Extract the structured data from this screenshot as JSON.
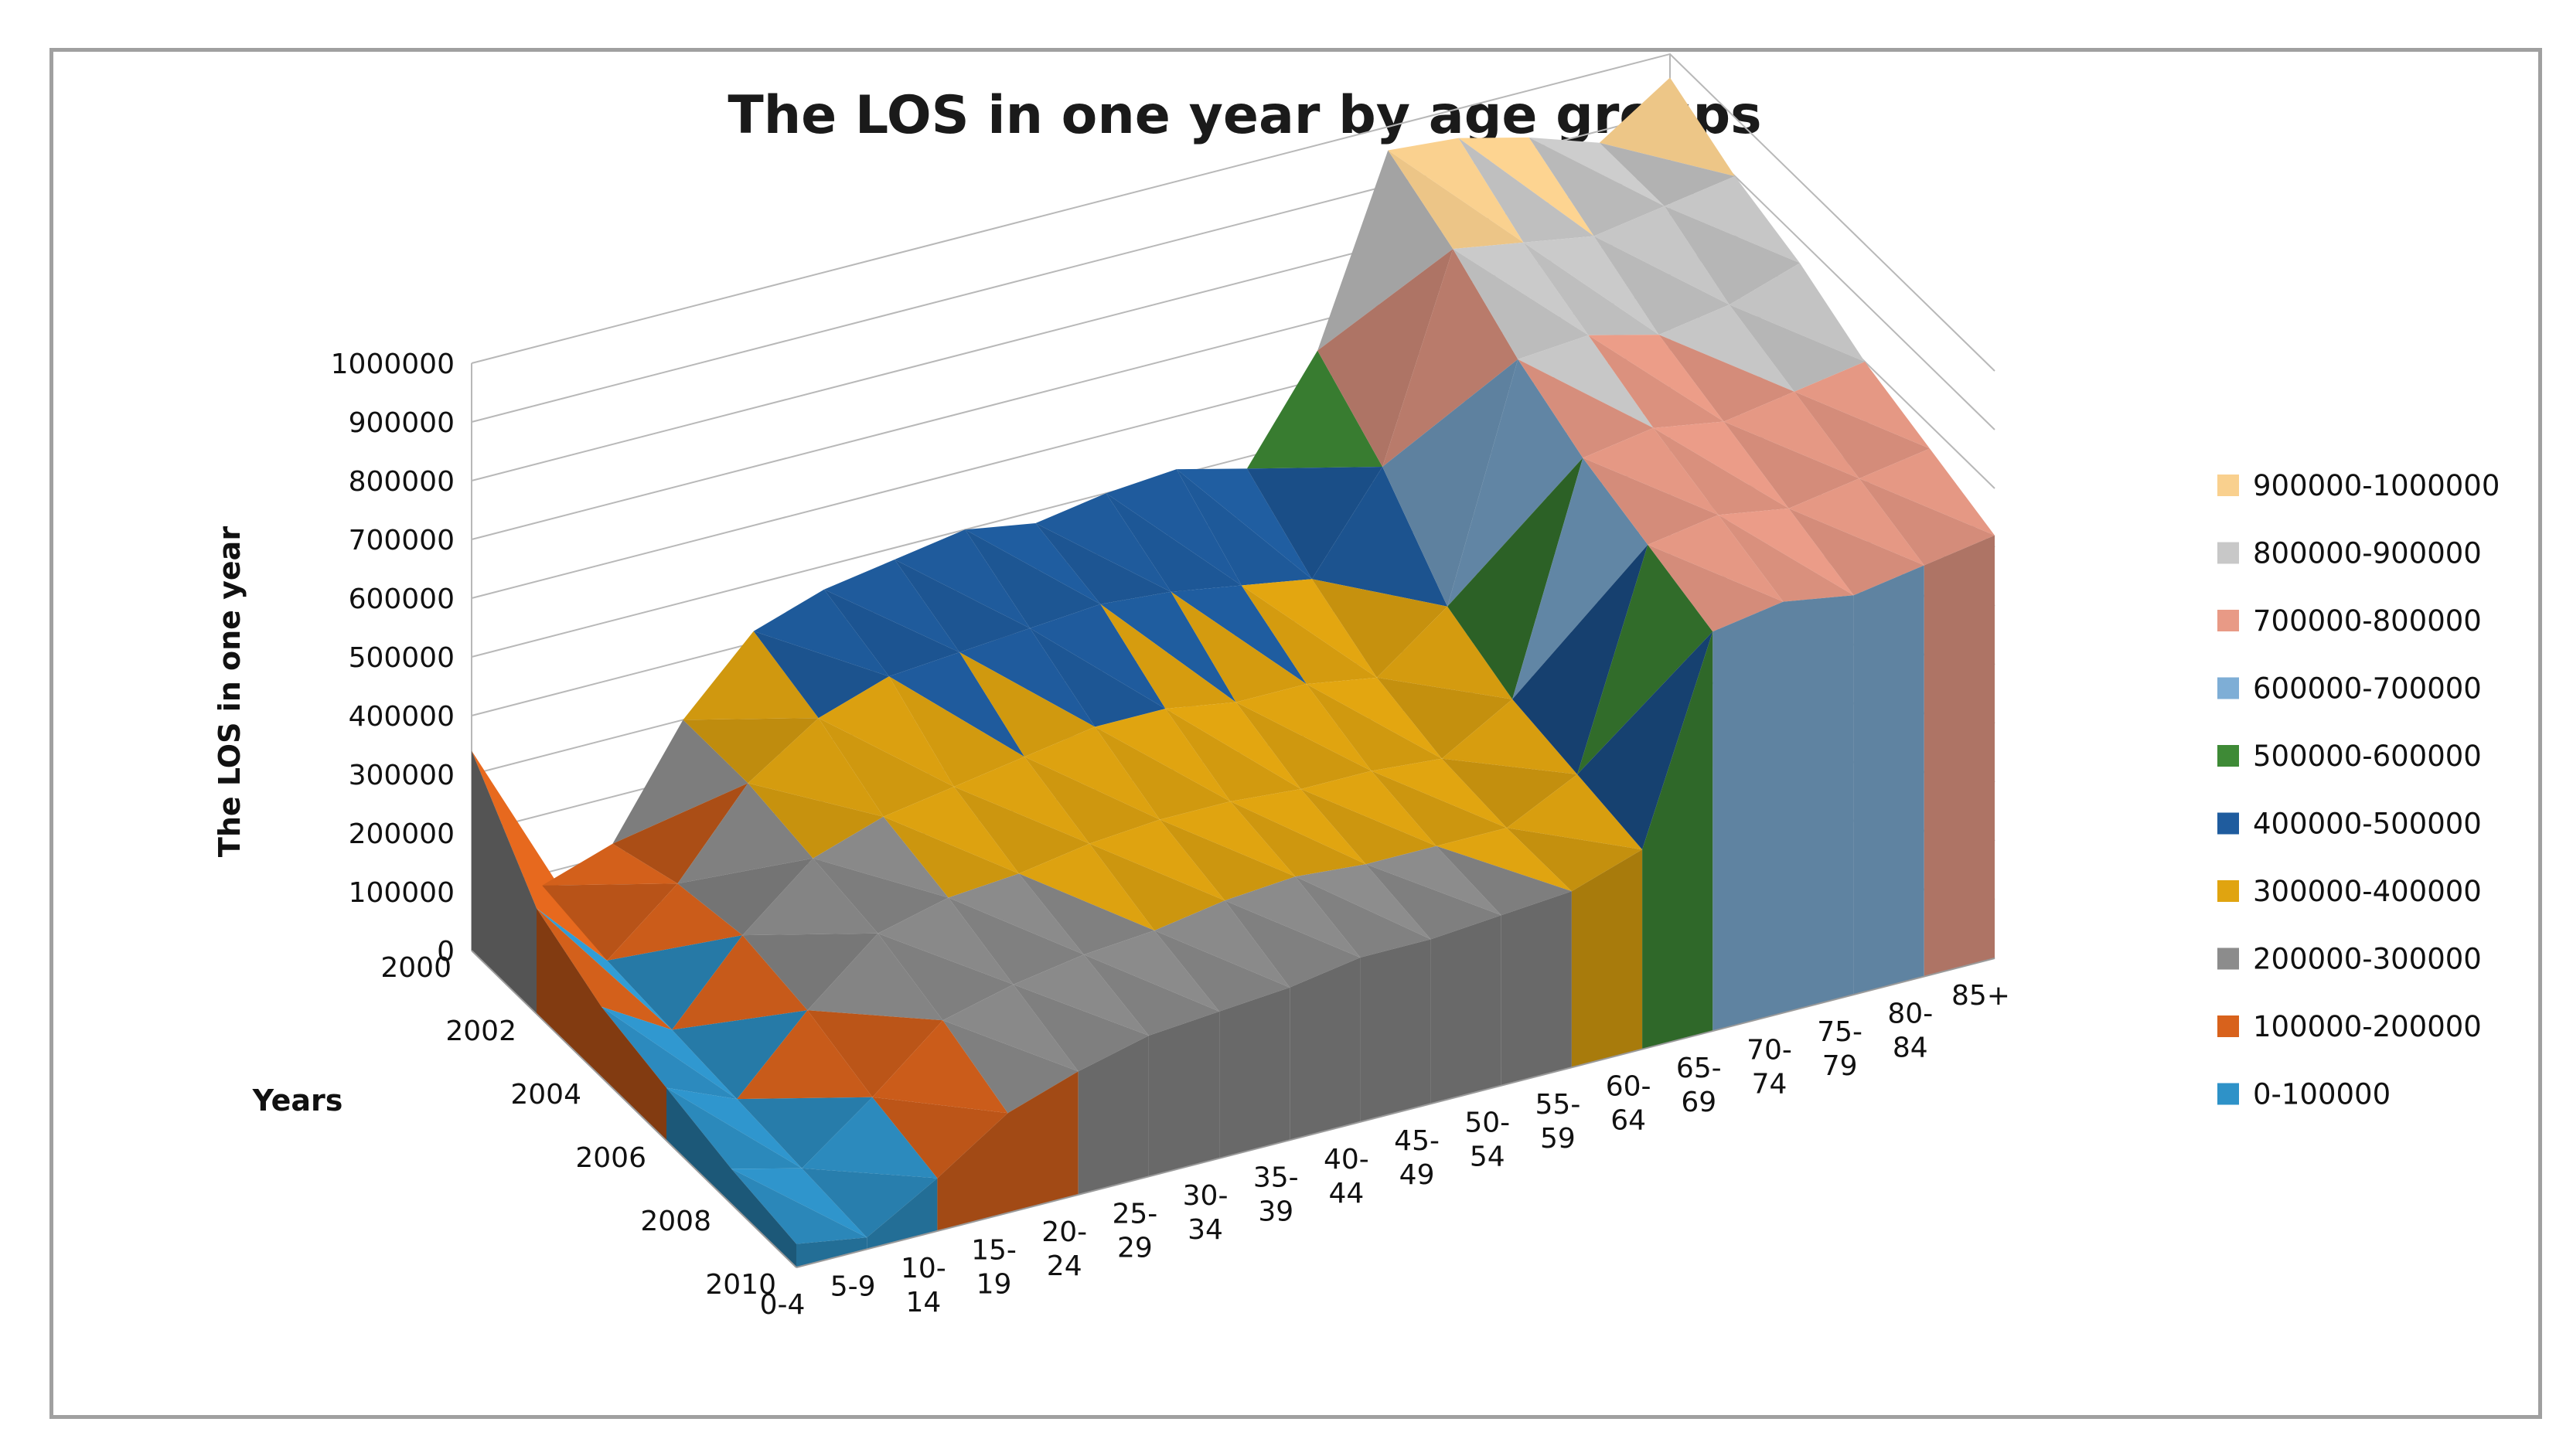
{
  "chart_data": {
    "type": "surface",
    "title": "The LOS in one year by age groups",
    "zlabel": "The LOS in one year",
    "ylabel": "Years",
    "xlabel": "",
    "zlim": [
      0,
      1000000
    ],
    "z_ticks": [
      "0",
      "100000",
      "200000",
      "300000",
      "400000",
      "500000",
      "600000",
      "700000",
      "800000",
      "900000",
      "1000000"
    ],
    "years": [
      "2000",
      "2002",
      "2004",
      "2006",
      "2008",
      "2010"
    ],
    "age_groups": [
      "0-4",
      "5-9",
      "10-14",
      "15-19",
      "20-24",
      "25-29",
      "30-34",
      "35-39",
      "40-44",
      "45-49",
      "50-54",
      "55-59",
      "60-64",
      "65-69",
      "70-74",
      "75-79",
      "80-84",
      "85+"
    ],
    "age_tick_lines": [
      [
        "0-4"
      ],
      [
        "5-9"
      ],
      [
        "10-",
        "14"
      ],
      [
        "15-",
        "19"
      ],
      [
        "20-",
        "24"
      ],
      [
        "25-",
        "29"
      ],
      [
        "30-",
        "34"
      ],
      [
        "35-",
        "39"
      ],
      [
        "40-",
        "44"
      ],
      [
        "45-",
        "49"
      ],
      [
        "50-",
        "54"
      ],
      [
        "55-",
        "59"
      ],
      [
        "60-",
        "64"
      ],
      [
        "65-",
        "69"
      ],
      [
        "70-",
        "74"
      ],
      [
        "75-",
        "79"
      ],
      [
        "80-",
        "84"
      ],
      [
        "85+"
      ]
    ],
    "series": [
      {
        "name": "2000",
        "values": [
          340000,
          80000,
          120000,
          300000,
          420000,
          460000,
          480000,
          500000,
          480000,
          500000,
          510000,
          480000,
          650000,
          960000,
          950000,
          920000,
          880000,
          960000
        ]
      },
      {
        "name": "2002",
        "values": [
          180000,
          60000,
          160000,
          300000,
          380000,
          420000,
          430000,
          440000,
          450000,
          440000,
          420000,
          400000,
          560000,
          900000,
          880000,
          860000,
          880000,
          900000
        ]
      },
      {
        "name": "2004",
        "values": [
          120000,
          50000,
          180000,
          280000,
          320000,
          340000,
          360000,
          380000,
          380000,
          360000,
          360000,
          340000,
          430000,
          820000,
          830000,
          800000,
          820000,
          860000
        ]
      },
      {
        "name": "2006",
        "values": [
          90000,
          40000,
          160000,
          260000,
          290000,
          300000,
          320000,
          330000,
          330000,
          320000,
          320000,
          310000,
          380000,
          760000,
          780000,
          760000,
          780000,
          800000
        ]
      },
      {
        "name": "2008",
        "values": [
          60000,
          30000,
          120000,
          220000,
          250000,
          270000,
          280000,
          300000,
          310000,
          300000,
          300000,
          300000,
          360000,
          720000,
          740000,
          720000,
          740000,
          760000
        ]
      },
      {
        "name": "2010",
        "values": [
          40000,
          20000,
          90000,
          170000,
          210000,
          240000,
          250000,
          260000,
          280000,
          280000,
          290000,
          300000,
          340000,
          680000,
          700000,
          680000,
          700000,
          720000
        ]
      }
    ],
    "bands": [
      {
        "label": "900000-1000000",
        "color": "#f9d08e"
      },
      {
        "label": "800000-900000",
        "color": "#c8c8c8"
      },
      {
        "label": "700000-800000",
        "color": "#e89a86"
      },
      {
        "label": "600000-700000",
        "color": "#7eaed6"
      },
      {
        "label": "500000-600000",
        "color": "#3e8a36"
      },
      {
        "label": "400000-500000",
        "color": "#1f5c9e"
      },
      {
        "label": "300000-400000",
        "color": "#e0a410"
      },
      {
        "label": "200000-300000",
        "color": "#8c8c8c"
      },
      {
        "label": "100000-200000",
        "color": "#d8621c"
      },
      {
        "label": "0-100000",
        "color": "#2e92c8"
      }
    ],
    "legend_position": "right",
    "grid": true
  }
}
